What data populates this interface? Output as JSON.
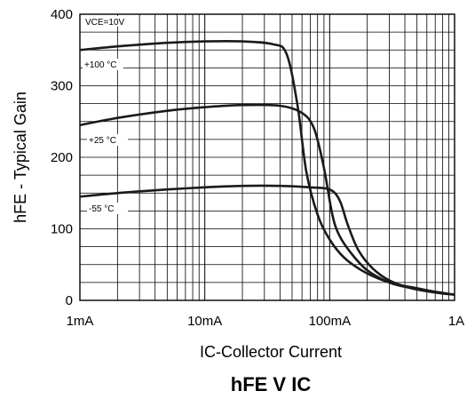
{
  "chart_data": {
    "type": "line",
    "title": "hFE V IC",
    "xlabel": "IC-Collector Current",
    "ylabel": "hFE - Typical Gain",
    "x_scale": "log",
    "xlim_A": [
      0.001,
      1
    ],
    "ylim": [
      0,
      400
    ],
    "x_tick_labels": [
      "1mA",
      "10mA",
      "100mA",
      "1A"
    ],
    "y_tick_labels": [
      "0",
      "100",
      "200",
      "300",
      "400"
    ],
    "grid": true,
    "condition_label": "VCE=10V",
    "series": [
      {
        "name": "+100 °C",
        "x_A": [
          0.001,
          0.002,
          0.005,
          0.01,
          0.02,
          0.035,
          0.045,
          0.055,
          0.065,
          0.08,
          0.1,
          0.13,
          0.18,
          0.25,
          0.35,
          0.5,
          0.7,
          1.0
        ],
        "y": [
          350,
          355,
          360,
          362,
          362,
          358,
          345,
          275,
          180,
          120,
          85,
          60,
          42,
          30,
          22,
          17,
          12,
          8
        ]
      },
      {
        "name": "+25 °C",
        "x_A": [
          0.001,
          0.002,
          0.005,
          0.01,
          0.02,
          0.04,
          0.06,
          0.075,
          0.09,
          0.105,
          0.12,
          0.15,
          0.2,
          0.3,
          0.45,
          0.7,
          1.0
        ],
        "y": [
          245,
          255,
          265,
          270,
          273,
          272,
          262,
          240,
          185,
          120,
          90,
          65,
          42,
          25,
          17,
          11,
          8
        ]
      },
      {
        "name": "-55 °C",
        "x_A": [
          0.001,
          0.002,
          0.005,
          0.01,
          0.02,
          0.04,
          0.07,
          0.1,
          0.12,
          0.14,
          0.17,
          0.22,
          0.3,
          0.45,
          0.7,
          1.0
        ],
        "y": [
          145,
          150,
          155,
          158,
          160,
          160,
          158,
          155,
          140,
          105,
          70,
          45,
          28,
          17,
          11,
          8
        ]
      }
    ]
  }
}
